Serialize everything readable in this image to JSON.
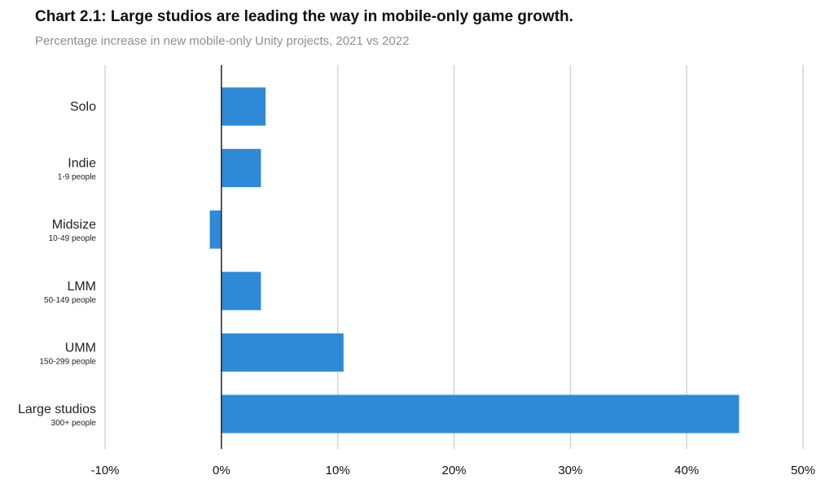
{
  "title": "Chart 2.1: Large studios are leading the way in mobile-only game growth.",
  "subtitle": "Percentage increase in new mobile-only Unity projects, 2021 vs 2022",
  "chart_data": {
    "type": "bar",
    "orientation": "horizontal",
    "categories": [
      {
        "label": "Solo",
        "sublabel": ""
      },
      {
        "label": "Indie",
        "sublabel": "1-9 people"
      },
      {
        "label": "Midsize",
        "sublabel": "10-49 people"
      },
      {
        "label": "LMM",
        "sublabel": "50-149 people"
      },
      {
        "label": "UMM",
        "sublabel": "150-299 people"
      },
      {
        "label": "Large studios",
        "sublabel": "300+ people"
      }
    ],
    "values": [
      3.8,
      3.4,
      -1.0,
      3.4,
      10.5,
      44.5
    ],
    "xlim": [
      -10,
      50
    ],
    "xticks": [
      -10,
      0,
      10,
      20,
      30,
      40,
      50
    ],
    "xtick_labels": [
      "-10%",
      "0%",
      "10%",
      "20%",
      "30%",
      "40%",
      "50%"
    ],
    "grid": "vertical",
    "bar_color": "#2e8ad6",
    "grid_color": "#d4d4d4",
    "zero_line_color": "#222222"
  }
}
